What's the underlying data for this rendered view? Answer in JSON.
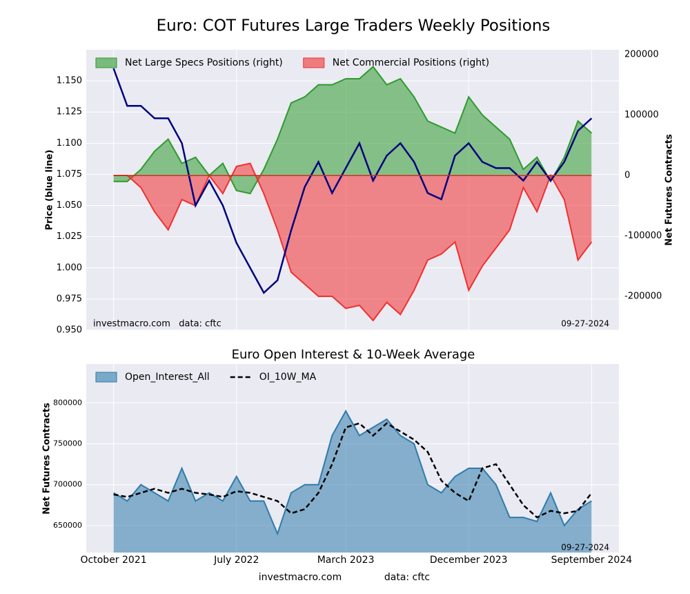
{
  "chart_data": [
    {
      "type": "line-area",
      "title": "Euro: COT Futures Large Traders Weekly Positions",
      "ylabel": "Price (blue line)",
      "y2label": "Net Futures Contracts",
      "annotation_left": "investmacro.com   data: cftc",
      "annotation_right": "09-27-2024",
      "x": [
        "2021-10",
        "2021-11",
        "2021-12",
        "2022-01",
        "2022-02",
        "2022-03",
        "2022-04",
        "2022-05",
        "2022-06",
        "2022-07",
        "2022-08",
        "2022-09",
        "2022-10",
        "2022-11",
        "2022-12",
        "2023-01",
        "2023-02",
        "2023-03",
        "2023-04",
        "2023-05",
        "2023-06",
        "2023-07",
        "2023-08",
        "2023-09",
        "2023-10",
        "2023-11",
        "2023-12",
        "2024-01",
        "2024-02",
        "2024-03",
        "2024-04",
        "2024-05",
        "2024-06",
        "2024-07",
        "2024-08",
        "2024-09"
      ],
      "xlim": [
        "2021-08",
        "2024-11"
      ],
      "price": {
        "color": "#000080",
        "values": [
          1.16,
          1.13,
          1.13,
          1.12,
          1.12,
          1.1,
          1.05,
          1.07,
          1.05,
          1.02,
          1.0,
          0.98,
          0.99,
          1.03,
          1.065,
          1.085,
          1.06,
          1.08,
          1.1,
          1.07,
          1.09,
          1.1,
          1.085,
          1.06,
          1.055,
          1.09,
          1.1,
          1.085,
          1.08,
          1.08,
          1.07,
          1.085,
          1.07,
          1.085,
          1.11,
          1.12
        ]
      },
      "series": [
        {
          "name": "Net Large Specs Positions (right)",
          "color": "#2e9a2e",
          "axis": "y2",
          "values": [
            -10000,
            -10000,
            10000,
            40000,
            60000,
            20000,
            30000,
            0,
            20000,
            -25000,
            -30000,
            10000,
            60000,
            120000,
            130000,
            150000,
            150000,
            160000,
            160000,
            180000,
            150000,
            160000,
            130000,
            90000,
            80000,
            70000,
            130000,
            100000,
            80000,
            60000,
            10000,
            30000,
            -10000,
            30000,
            90000,
            70000
          ]
        },
        {
          "name": "Net Commercial Positions (right)",
          "color": "#f03030",
          "axis": "y2",
          "values": [
            0,
            0,
            -20000,
            -60000,
            -90000,
            -40000,
            -50000,
            0,
            -30000,
            15000,
            20000,
            -30000,
            -90000,
            -160000,
            -180000,
            -200000,
            -200000,
            -220000,
            -215000,
            -240000,
            -210000,
            -230000,
            -190000,
            -140000,
            -130000,
            -110000,
            -190000,
            -150000,
            -120000,
            -90000,
            -20000,
            -60000,
            0,
            -40000,
            -140000,
            -110000
          ]
        }
      ],
      "ylim": [
        0.95,
        1.175
      ],
      "yticks": [
        {
          "value": 0.95,
          "label": "0.950"
        },
        0.975,
        {
          "value": 1.0,
          "label": "1.000"
        },
        1.025,
        {
          "value": 1.05,
          "label": "1.050"
        },
        1.075,
        {
          "value": 1.1,
          "label": "1.100"
        },
        1.125,
        {
          "value": 1.15,
          "label": "1.150"
        }
      ],
      "y2lim": [
        -256000,
        208000
      ],
      "y2ticks": [
        -200000,
        -100000,
        0,
        100000,
        200000
      ],
      "grid": true,
      "legend": "upper-left"
    },
    {
      "type": "area",
      "title": "Euro Open Interest & 10-Week Average",
      "ylabel": "Net Futures Contracts",
      "annotation_right": "09-27-2024",
      "footer_left": "investmacro.com",
      "footer_right": "data: cftc",
      "x": [
        "2021-10",
        "2021-11",
        "2021-12",
        "2022-01",
        "2022-02",
        "2022-03",
        "2022-04",
        "2022-05",
        "2022-06",
        "2022-07",
        "2022-08",
        "2022-09",
        "2022-10",
        "2022-11",
        "2022-12",
        "2023-01",
        "2023-02",
        "2023-03",
        "2023-04",
        "2023-05",
        "2023-06",
        "2023-07",
        "2023-08",
        "2023-09",
        "2023-10",
        "2023-11",
        "2023-12",
        "2024-01",
        "2024-02",
        "2024-03",
        "2024-04",
        "2024-05",
        "2024-06",
        "2024-07",
        "2024-08",
        "2024-09"
      ],
      "xlim": [
        "2021-08",
        "2024-11"
      ],
      "xticks": [
        {
          "value": "2021-10",
          "label": "October 2021"
        },
        {
          "value": "2022-07",
          "label": "July 2022"
        },
        {
          "value": "2023-03",
          "label": "March 2023"
        },
        {
          "value": "2023-12",
          "label": "December 2023"
        },
        {
          "value": "2024-09",
          "label": "September 2024"
        }
      ],
      "series": [
        {
          "name": "Open_Interest_All",
          "color": "#2f7bab",
          "values": [
            690000,
            680000,
            700000,
            690000,
            680000,
            720000,
            680000,
            690000,
            680000,
            710000,
            680000,
            680000,
            640000,
            690000,
            700000,
            700000,
            760000,
            790000,
            760000,
            770000,
            780000,
            760000,
            750000,
            700000,
            690000,
            710000,
            720000,
            720000,
            700000,
            660000,
            660000,
            655000,
            690000,
            650000,
            670000,
            680000
          ]
        },
        {
          "name": "OI_10W_MA",
          "color": "#000000",
          "dashed": true,
          "values": [
            688000,
            685000,
            690000,
            695000,
            690000,
            695000,
            690000,
            688000,
            685000,
            692000,
            690000,
            685000,
            680000,
            665000,
            670000,
            690000,
            725000,
            770000,
            775000,
            760000,
            775000,
            765000,
            755000,
            740000,
            705000,
            690000,
            680000,
            720000,
            725000,
            700000,
            675000,
            660000,
            668000,
            665000,
            668000,
            690000
          ]
        }
      ],
      "ylim": [
        617000,
        847500
      ],
      "yticks": [
        650000,
        700000,
        750000,
        800000
      ],
      "grid": true,
      "legend": "upper-left"
    }
  ]
}
